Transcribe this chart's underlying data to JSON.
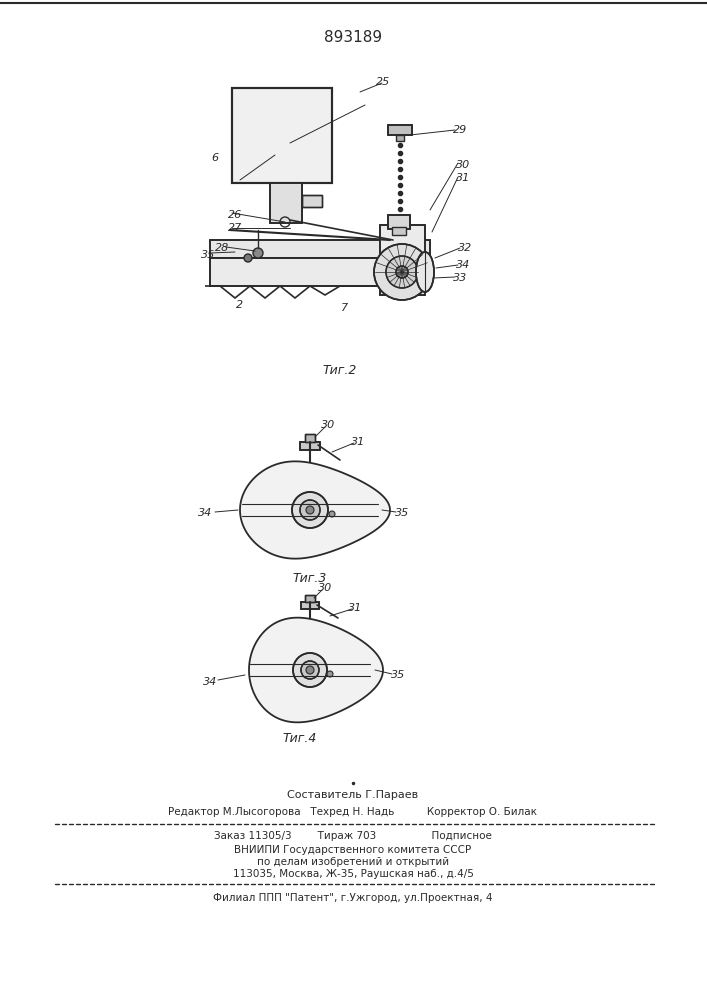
{
  "patent_number": "893189",
  "background_color": "#ffffff",
  "line_color": "#2a2a2a",
  "fig2_caption": "Τиг.2",
  "fig3_caption": "Τиг.3",
  "fig4_caption": "Τиг.4",
  "footer_line1": "Составитель Г.Параев",
  "footer_line2": "Редактор М.Лысогорова   Техред Н. Надь          Корректор О. Билак",
  "footer_line3": "Заказ 11305/3        Тираж 703                 Подписное",
  "footer_line4": "ВНИИПИ Государственного комитета СССР",
  "footer_line5": "по делам изобретений и открытий",
  "footer_line6": "113035, Москва, Ж-35, Раушская наб., д.4/5",
  "footer_line7": "Филиал ППП \"Патент\", г.Ужгород, ул.Проектная, 4"
}
